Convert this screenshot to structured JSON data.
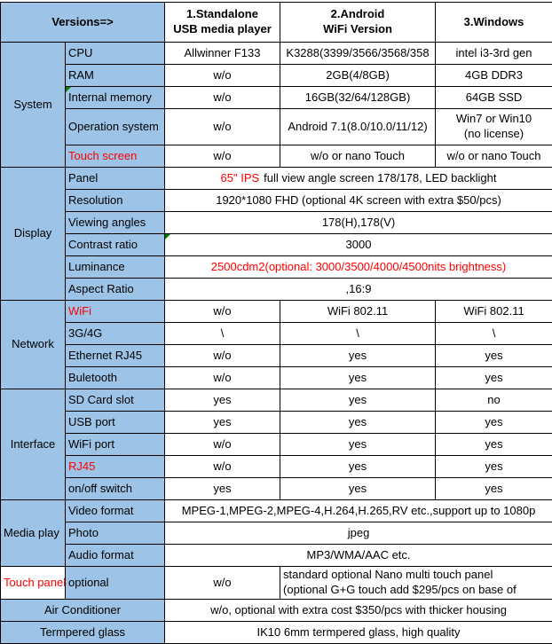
{
  "colors": {
    "header_blue": "#9DC3E6",
    "red_text": "#FF0000",
    "marker_green": "#008000",
    "border_black": "#000000"
  },
  "header": {
    "versions_label": "Versions=>",
    "columns": [
      "1.Standalone\nUSB media player",
      "2.Android\nWiFi Version",
      "3.Windows"
    ]
  },
  "sections": {
    "system": "System",
    "display": "Display",
    "network": "Network",
    "interface": "Interface",
    "media_play": "Media play",
    "touch_panel": "Touch panel"
  },
  "system": {
    "cpu": {
      "label": "CPU",
      "standalone": "Allwinner F133",
      "android": "K3288(3399/3566/3568/358",
      "windows": "intel i3-3rd gen"
    },
    "ram": {
      "label": "RAM",
      "standalone": "w/o",
      "android": "2GB(4/8GB)",
      "windows": "4GB DDR3"
    },
    "internal_memory": {
      "label": "Internal memory",
      "standalone": "w/o",
      "android": "16GB(32/64/128GB)",
      "windows": "64GB SSD"
    },
    "operation_system": {
      "label": "Operation system",
      "standalone": "w/o",
      "android": "Android 7.1(8.0/10.0/11/12)",
      "windows": "Win7 or Win10\n(no license)"
    },
    "touch_screen": {
      "label": "Touch screen",
      "standalone": "w/o",
      "android": "w/o or nano Touch",
      "windows": "w/o or nano Touch"
    }
  },
  "display": {
    "panel": {
      "label": "Panel",
      "value_highlight": "65\" IPS",
      "value_rest": "full view angle screen 178/178, LED backlight"
    },
    "resolution": {
      "label": "Resolution",
      "value": "1920*1080 FHD (optional 4K screen with extra $50/pcs)"
    },
    "viewing_angles": {
      "label": "Viewing angles",
      "value": "178(H),178(V)"
    },
    "contrast_ratio": {
      "label": "Contrast ratio",
      "value": "3000"
    },
    "luminance": {
      "label": "Luminance",
      "value": "2500cdm2(optional: 3000/3500/4000/4500nits brightness)"
    },
    "aspect_ratio": {
      "label": "Aspect Ratio",
      "value": ",16:9"
    }
  },
  "network": {
    "wifi": {
      "label": "WiFi",
      "standalone": "w/o",
      "android": "WiFi 802.11",
      "windows": "WiFi 802.11"
    },
    "g3_4g": {
      "label": "3G/4G",
      "standalone": "\\",
      "android": "\\",
      "windows": "\\"
    },
    "ethernet_rj45": {
      "label": "Ethernet RJ45",
      "standalone": "w/o",
      "android": "yes",
      "windows": "yes"
    },
    "bluetooth": {
      "label": "Buletooth",
      "standalone": "w/o",
      "android": "yes",
      "windows": "yes"
    }
  },
  "interface": {
    "sd_card_slot": {
      "label": "SD Card slot",
      "standalone": "yes",
      "android": "yes",
      "windows": "no"
    },
    "usb_port": {
      "label": "USB port",
      "standalone": "yes",
      "android": "yes",
      "windows": "yes"
    },
    "wifi_port": {
      "label": "WiFi port",
      "standalone": "w/o",
      "android": "yes",
      "windows": "yes"
    },
    "rj45": {
      "label": "RJ45",
      "standalone": "w/o",
      "android": "yes",
      "windows": "yes"
    },
    "onoff_switch": {
      "label": "on/off switch",
      "standalone": "yes",
      "android": "yes",
      "windows": "yes"
    }
  },
  "media_play": {
    "video_format": {
      "label": "Video format",
      "value": "MPEG-1,MPEG-2,MPEG-4,H.264,H.265,RV etc.,support up to 1080p"
    },
    "photo": {
      "label": "Photo",
      "value": "jpeg"
    },
    "audio_format": {
      "label": "Audio format",
      "value": "MP3/WMA/AAC etc."
    }
  },
  "touch_panel": {
    "label": "optional",
    "standalone": "w/o",
    "android_windows": "standard optional Nano multi touch panel\n(optional G+G touch add $295/pcs on base of"
  },
  "footer": {
    "air_conditioner": {
      "label": "Air Conditioner",
      "value": "w/o, optional with extra cost $350/pcs with thicker housing"
    },
    "tempered_glass": {
      "label": "Termpered glass",
      "value": "IK10 6mm termpered glass, high quality"
    }
  }
}
